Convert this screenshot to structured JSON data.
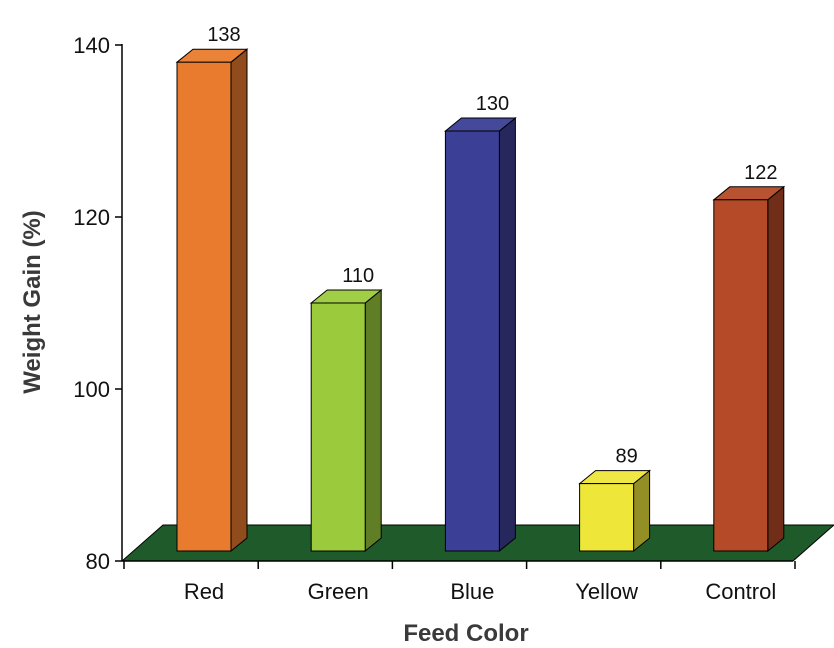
{
  "chart_data": {
    "type": "bar",
    "title": "",
    "xlabel": "Feed Color",
    "ylabel": "Weight Gain (%)",
    "ylim": [
      80,
      140
    ],
    "yticks": [
      80,
      100,
      120,
      140
    ],
    "categories": [
      "Red",
      "Green",
      "Blue",
      "Yellow",
      "Control"
    ],
    "values": [
      138,
      110,
      130,
      89,
      122
    ],
    "data_labels": [
      "138",
      "110",
      "130",
      "89",
      "122"
    ],
    "colors": [
      "#E97B2E",
      "#9BCB3C",
      "#3B3F96",
      "#EEE73A",
      "#B44A27"
    ],
    "floor_color": "#1F5A2B",
    "grid": false,
    "legend": "none",
    "style": "3d-bar"
  }
}
